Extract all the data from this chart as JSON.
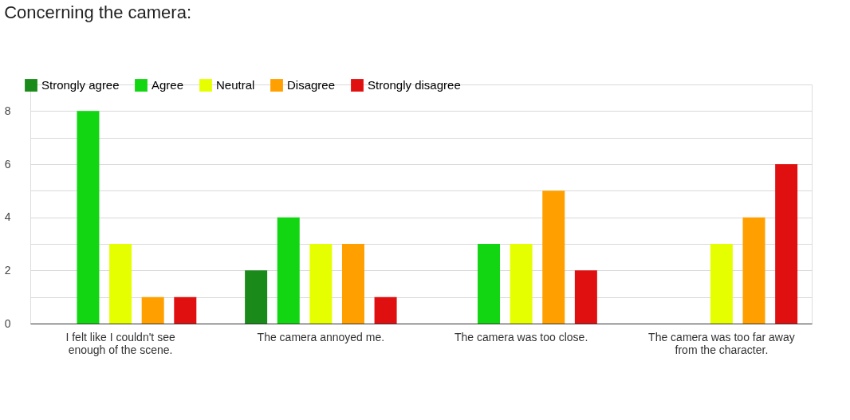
{
  "chart_data": {
    "type": "bar",
    "title": "Concerning the camera:",
    "categories": [
      "I felt like I couldn't see enough of the scene.",
      "The camera annoyed me.",
      "The camera was too close.",
      "The camera was too far away from the character."
    ],
    "series": [
      {
        "name": "Strongly agree",
        "color": "#1a8a1a",
        "values": [
          0,
          2,
          0,
          0
        ]
      },
      {
        "name": "Agree",
        "color": "#12d612",
        "values": [
          8,
          4,
          3,
          0
        ]
      },
      {
        "name": "Neutral",
        "color": "#e6ff00",
        "values": [
          3,
          3,
          3,
          3
        ]
      },
      {
        "name": "Disagree",
        "color": "#ffa000",
        "values": [
          1,
          3,
          5,
          4
        ]
      },
      {
        "name": "Strongly disagree",
        "color": "#e01010",
        "values": [
          1,
          1,
          2,
          6
        ]
      }
    ],
    "ylim": [
      0,
      9
    ],
    "yticks": [
      0,
      {
        "value": 1,
        "label": null
      },
      2,
      {
        "value": 3,
        "label": null
      },
      4,
      {
        "value": 5,
        "label": null
      },
      6,
      {
        "value": 7,
        "label": null
      },
      8,
      {
        "value": 9,
        "label": null
      }
    ],
    "grid": "y",
    "legend": "top left"
  }
}
